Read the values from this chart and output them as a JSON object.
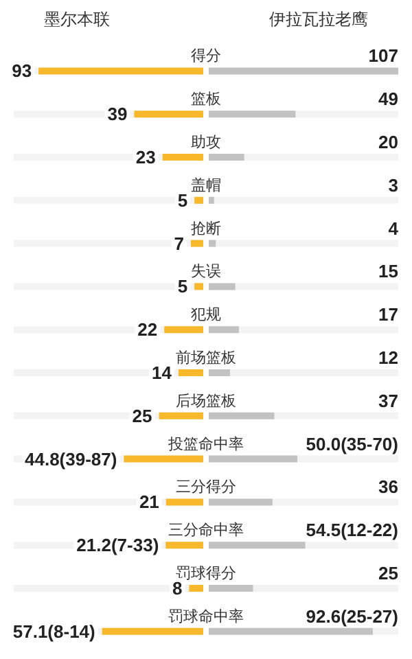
{
  "chart_data": [
    {
      "type": "bar",
      "orientation": "horizontal",
      "tick_labels": "y",
      "grid": false,
      "xlim": [
        107,
        0
      ],
      "categories": [
        "得分",
        "篮板",
        "助攻",
        "盖帽",
        "抢断",
        "失误",
        "犯规",
        "前场篮板",
        "后场篮板",
        "投篮命中率",
        "三分得分",
        "三分命中率",
        "罚球得分",
        "罚球命中率"
      ],
      "series": [
        {
          "name": "墨尔本联",
          "color": "#f8b82c",
          "values": [
            93,
            39,
            23,
            5,
            7,
            5,
            22,
            14,
            25,
            44.8,
            21,
            21.2,
            8,
            57.1
          ],
          "value_labels": [
            "93",
            "39",
            "23",
            "5",
            "7",
            "5",
            "22",
            "14",
            "25",
            "44.8(39-87)",
            "21",
            "21.2(7-33)",
            "8",
            "57.1(8-14)"
          ]
        }
      ]
    },
    {
      "type": "bar",
      "orientation": "horizontal",
      "grid": false,
      "xlim": [
        0,
        107
      ],
      "categories": [
        null,
        null,
        null,
        null,
        null,
        null,
        null,
        null,
        null,
        null,
        null,
        null,
        null,
        null
      ],
      "series": [
        {
          "name": "伊拉瓦拉老鹰",
          "color": "#c2c2c2",
          "values": [
            107,
            49,
            20,
            3,
            4,
            15,
            17,
            12,
            37,
            50.0,
            36,
            54.5,
            25,
            92.6
          ],
          "value_labels": [
            "107",
            "49",
            "20",
            "3",
            "4",
            "15",
            "17",
            "12",
            "37",
            "50.0(35-70)",
            "36",
            "54.5(12-22)",
            "25",
            "92.6(25-27)"
          ]
        }
      ]
    }
  ]
}
